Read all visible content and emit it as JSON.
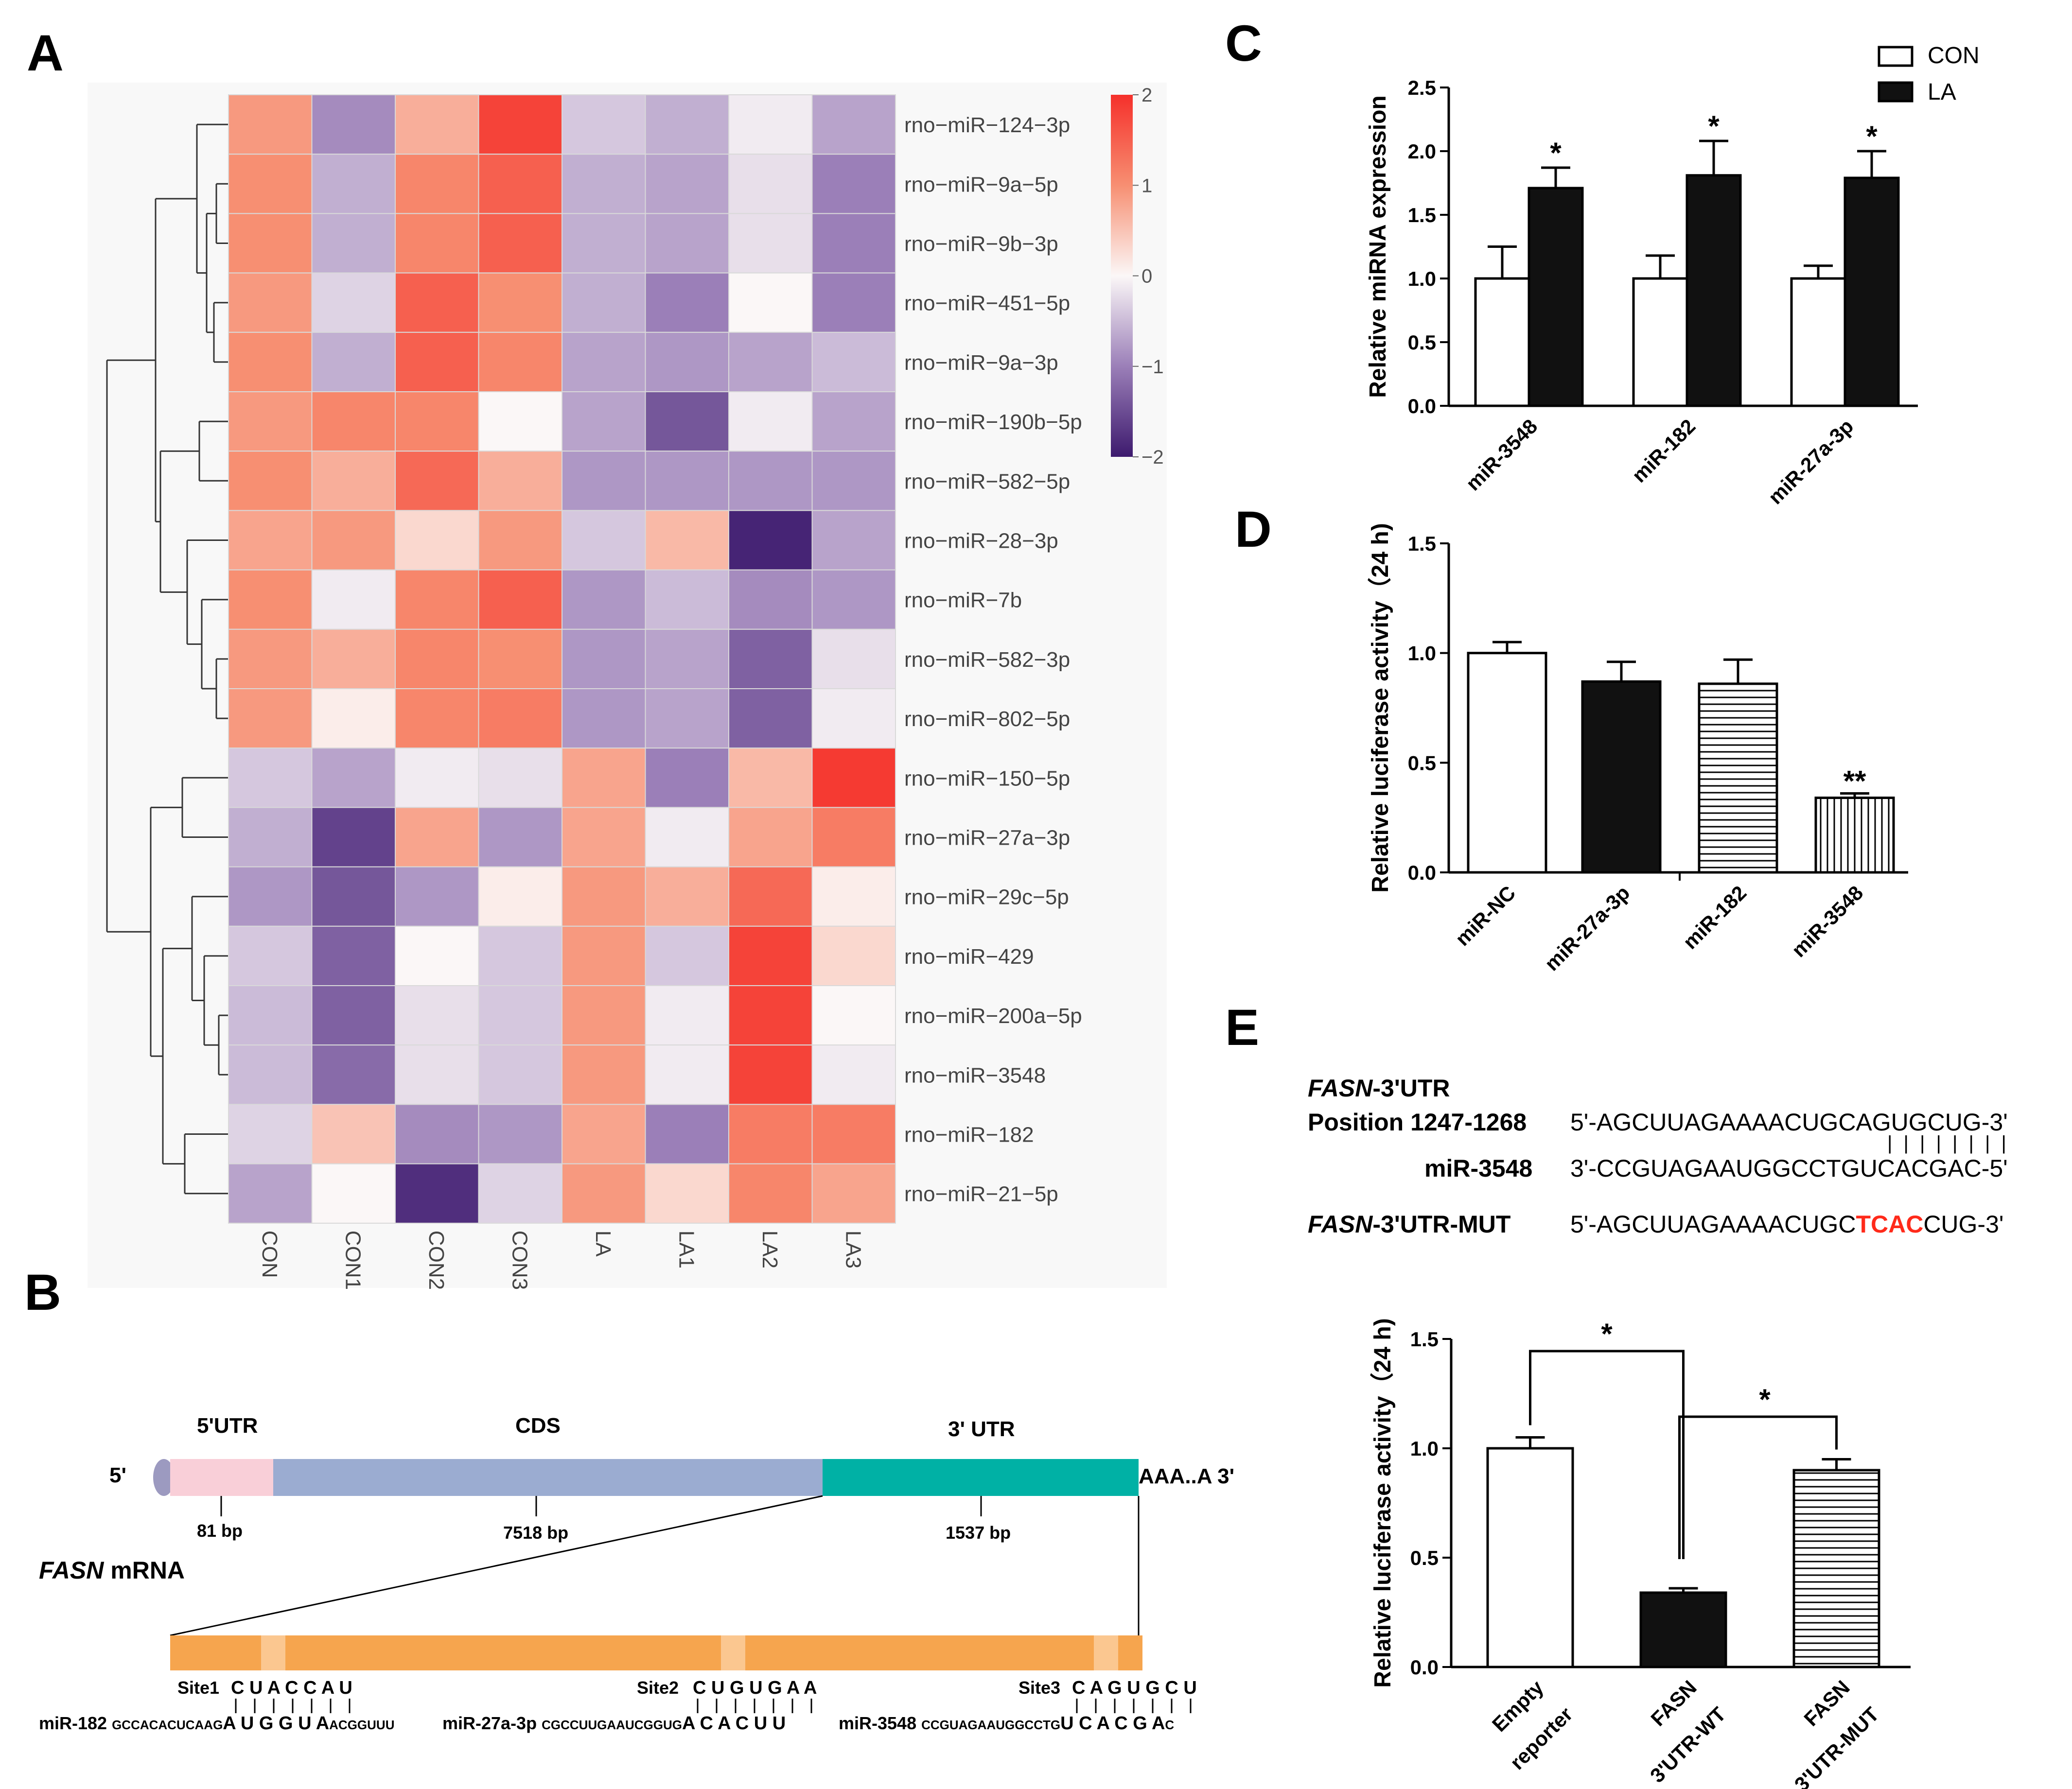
{
  "panels": {
    "A": "A",
    "B": "B",
    "C": "C",
    "D": "D",
    "E": "E"
  },
  "heatmap": {
    "columns": [
      "CON",
      "CON1",
      "CON2",
      "CON3",
      "LA",
      "LA1",
      "LA2",
      "LA3"
    ],
    "rows": [
      "rno−miR−124−3p",
      "rno−miR−9a−5p",
      "rno−miR−9b−3p",
      "rno−miR−451−5p",
      "rno−miR−9a−3p",
      "rno−miR−190b−5p",
      "rno−miR−582−5p",
      "rno−miR−28−3p",
      "rno−miR−7b",
      "rno−miR−582−3p",
      "rno−miR−802−5p",
      "rno−miR−150−5p",
      "rno−miR−27a−3p",
      "rno−miR−29c−5p",
      "rno−miR−429",
      "rno−miR−200a−5p",
      "rno−miR−3548",
      "rno−miR−182",
      "rno−miR−21−5p"
    ],
    "values": [
      [
        0.9,
        -0.9,
        0.7,
        1.8,
        -0.4,
        -0.6,
        -0.1,
        -0.7
      ],
      [
        1.0,
        -0.6,
        1.1,
        1.5,
        -0.6,
        -0.7,
        -0.2,
        -1.0
      ],
      [
        1.0,
        -0.6,
        1.1,
        1.5,
        -0.6,
        -0.7,
        -0.2,
        -1.0
      ],
      [
        0.9,
        -0.3,
        1.5,
        1.0,
        -0.6,
        -1.0,
        0.0,
        -1.0
      ],
      [
        1.0,
        -0.6,
        1.5,
        1.1,
        -0.7,
        -0.8,
        -0.7,
        -0.5
      ],
      [
        0.9,
        1.1,
        1.1,
        0.0,
        -0.7,
        -1.4,
        -0.1,
        -0.7
      ],
      [
        1.0,
        0.7,
        1.4,
        0.7,
        -0.8,
        -0.8,
        -0.8,
        -0.8
      ],
      [
        0.8,
        0.9,
        0.3,
        0.9,
        -0.4,
        0.6,
        -1.9,
        -0.7
      ],
      [
        1.0,
        -0.1,
        1.1,
        1.5,
        -0.8,
        -0.5,
        -0.9,
        -0.8
      ],
      [
        0.9,
        0.7,
        1.1,
        1.0,
        -0.8,
        -0.7,
        -1.3,
        -0.2
      ],
      [
        0.9,
        0.1,
        1.1,
        1.2,
        -0.8,
        -0.7,
        -1.3,
        -0.1
      ],
      [
        -0.4,
        -0.7,
        -0.1,
        -0.2,
        0.8,
        -1.0,
        0.6,
        1.9
      ],
      [
        -0.6,
        -1.6,
        0.8,
        -0.8,
        0.8,
        -0.1,
        0.8,
        1.2
      ],
      [
        -0.8,
        -1.4,
        -0.8,
        0.1,
        0.9,
        0.7,
        1.4,
        0.1
      ],
      [
        -0.4,
        -1.3,
        0.0,
        -0.4,
        0.9,
        -0.4,
        1.8,
        0.3
      ],
      [
        -0.5,
        -1.3,
        -0.2,
        -0.4,
        0.9,
        -0.1,
        1.8,
        0.0
      ],
      [
        -0.5,
        -1.2,
        -0.2,
        -0.4,
        0.9,
        -0.1,
        1.8,
        -0.1
      ],
      [
        -0.3,
        0.5,
        -0.9,
        -0.8,
        0.8,
        -1.0,
        1.2,
        1.2
      ],
      [
        -0.7,
        0.0,
        -1.8,
        -0.3,
        0.9,
        0.3,
        1.1,
        0.8
      ]
    ],
    "colorbar_ticks": [
      "2",
      "1",
      "0",
      "−1",
      "−2"
    ]
  },
  "fasn": {
    "utr5": "5'UTR",
    "cds": "CDS",
    "utr3": "3' UTR",
    "five_prime": "5'",
    "polyA": "AAA..A 3'",
    "len_utr5": "81 bp",
    "len_cds": "7518 bp",
    "len_utr3": "1537 bp",
    "gene_italic": "FASN",
    "gene_rest": " mRNA",
    "sites": [
      {
        "site": "Site1",
        "site_seq": "C U A C C A U",
        "mirna": "miR-182",
        "mirna_prefix": "GCCACACUCAAG",
        "mirna_seed": "A U G G U A",
        "mirna_suffix": "ACGGUUU"
      },
      {
        "site": "Site2",
        "site_seq": "C U G U G A A",
        "mirna": "miR-27a-3p",
        "mirna_prefix": "CGCCUUGAAUCGGUG",
        "mirna_seed": "A C A C U U",
        "mirna_suffix": ""
      },
      {
        "site": "Site3",
        "site_seq": "C A G U G C U",
        "mirna": "miR-3548",
        "mirna_prefix": "CCGUAGAAUGGCCTG",
        "mirna_seed": "U C A C G A",
        "mirna_suffix": "C"
      }
    ]
  },
  "chart_data": [
    {
      "id": "C",
      "type": "bar",
      "ylabel": "Relative miRNA expression",
      "categories": [
        "miR-3548",
        "miR-182",
        "miR-27a-3p"
      ],
      "series": [
        {
          "name": "CON",
          "values": [
            1.0,
            1.0,
            1.0
          ],
          "errors": [
            0.25,
            0.18,
            0.1
          ],
          "color": "#ffffff"
        },
        {
          "name": "LA",
          "values": [
            1.71,
            1.81,
            1.79
          ],
          "errors": [
            0.16,
            0.27,
            0.21
          ],
          "color": "#000000"
        }
      ],
      "significance": [
        "*",
        "*",
        "*"
      ],
      "ylim": [
        0,
        2.5
      ],
      "yticks": [
        "0.0",
        "0.5",
        "1.0",
        "1.5",
        "2.0",
        "2.5"
      ],
      "legend": [
        "CON",
        "LA"
      ]
    },
    {
      "id": "D",
      "type": "bar",
      "ylabel": "Relative luciferase activity（24 h)",
      "categories": [
        "miR-NC",
        "miR-27a-3p",
        "miR-182",
        "miR-3548"
      ],
      "values": [
        1.0,
        0.87,
        0.86,
        0.34
      ],
      "errors": [
        0.05,
        0.09,
        0.11,
        0.02
      ],
      "significance": [
        "",
        "",
        "",
        "**"
      ],
      "ylim": [
        0,
        1.5
      ],
      "yticks": [
        "0.0",
        "0.5",
        "1.0",
        "1.5"
      ]
    },
    {
      "id": "E",
      "type": "bar",
      "ylabel": "Relative luciferase activity（24 h)",
      "categories": [
        "Empty reporter",
        "FASN 3'UTR-WT",
        "FASN 3'UTR-MUT"
      ],
      "values": [
        1.0,
        0.34,
        0.9
      ],
      "errors": [
        0.05,
        0.02,
        0.05
      ],
      "significance": [
        "*",
        "*"
      ],
      "ylim": [
        0,
        1.5
      ],
      "yticks": [
        "0.0",
        "0.5",
        "1.0",
        "1.5"
      ]
    }
  ],
  "alignment": {
    "label1_italic": "FASN",
    "label1_rest": "-3'UTR",
    "label2": "Position 1247-1268",
    "seq1": "5'-AGCUUAGAAAACUGCAGUGCUG-3'",
    "pairs": "| | | | | | | |",
    "label3": "miR-3548",
    "seq2": "3'-CCGUAGAAUGGCCTGUCACGAC-5'",
    "label4_italic": "FASN",
    "label4_rest": "-3'UTR-MUT",
    "mut_prefix": "5'-AGCUUAGAAAACUGC",
    "mut_red": "TCAC",
    "mut_suffix": "CUG-3'"
  }
}
